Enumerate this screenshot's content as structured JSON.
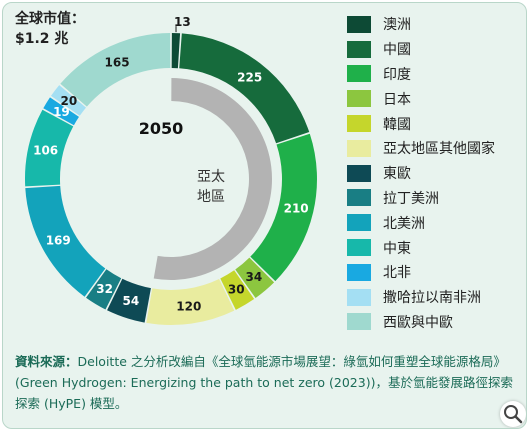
{
  "market": {
    "label": "全球市值：",
    "value": "$1.2 兆"
  },
  "chart_data": {
    "type": "pie",
    "title": "",
    "year_label": "2050",
    "inner_label": [
      "亞太",
      "地區"
    ],
    "total_label": "$1.2 兆",
    "series": [
      {
        "name": "澳洲",
        "value": 13,
        "color": "#0d4a35"
      },
      {
        "name": "中國",
        "value": 225,
        "color": "#166b3c"
      },
      {
        "name": "印度",
        "value": 210,
        "color": "#1fb04a"
      },
      {
        "name": "日本",
        "value": 34,
        "color": "#8cc63f"
      },
      {
        "name": "韓國",
        "value": 30,
        "color": "#c5d62c"
      },
      {
        "name": "亞太地區其他國家",
        "value": 120,
        "color": "#e9ec9f"
      },
      {
        "name": "東歐",
        "value": 54,
        "color": "#0e4a55"
      },
      {
        "name": "拉丁美洲",
        "value": 32,
        "color": "#197e84"
      },
      {
        "name": "北美洲",
        "value": 169,
        "color": "#13a3bb"
      },
      {
        "name": "中東",
        "value": 106,
        "color": "#17b8aa"
      },
      {
        "name": "北非",
        "value": 19,
        "color": "#19a9e1"
      },
      {
        "name": "撒哈拉以南非洲",
        "value": 20,
        "color": "#a4dff3"
      },
      {
        "name": "西歐與中歐",
        "value": 165,
        "color": "#9fd9cf"
      }
    ],
    "asia_pacific_members": [
      "澳洲",
      "中國",
      "印度",
      "日本",
      "韓國",
      "亞太地區其他國家"
    ],
    "inner_ring_color": "#b3b3b3",
    "value_label_color": "#1a1a1a"
  },
  "source": {
    "heading": "資料來源：",
    "text": "Deloitte 之分析改編自《全球氫能源市場展望：綠氫如何重塑全球能源格局》(Green Hydrogen: Energizing the path to net zero (2023))，基於氫能發展路徑探索探索 (HyPE) 模型。"
  },
  "icons": {
    "zoom": "magnifier-icon"
  }
}
